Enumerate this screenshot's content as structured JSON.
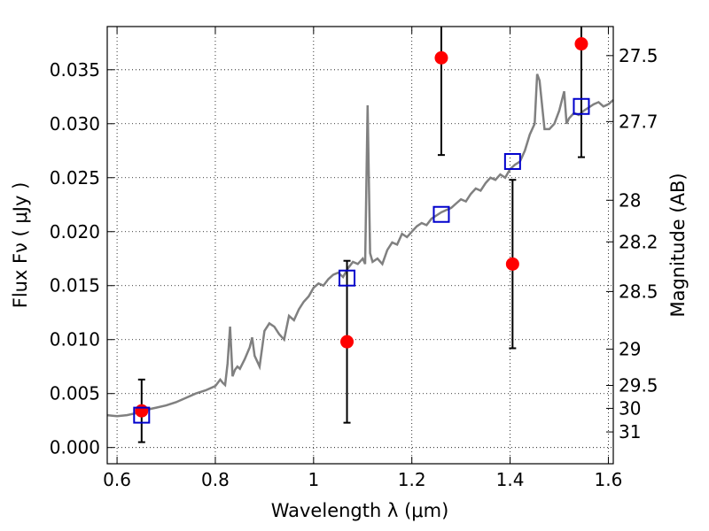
{
  "chart_data": {
    "type": "scatter",
    "xlabel": "Wavelength  λ (μm)",
    "ylabel": "Flux  Fν  ( μJy )",
    "y2label": "Magnitude (AB)",
    "xlim": [
      0.58,
      1.61
    ],
    "ylim": [
      -0.0015,
      0.039
    ],
    "grid": true,
    "x_ticks": [
      0.6,
      0.8,
      1.0,
      1.2,
      1.4,
      1.6
    ],
    "x_tick_labels": [
      "0.6",
      "0.8",
      "1",
      "1.2",
      "1.4",
      "1.6"
    ],
    "y_ticks": [
      0.0,
      0.005,
      0.01,
      0.015,
      0.02,
      0.025,
      0.03,
      0.035
    ],
    "y_tick_labels": [
      "0.000",
      "0.005",
      "0.010",
      "0.015",
      "0.020",
      "0.025",
      "0.030",
      "0.035"
    ],
    "mag_ticks": [
      27.5,
      27.7,
      28,
      28.2,
      28.5,
      29,
      29.5,
      30,
      31
    ],
    "mag_tick_labels": [
      "27.5",
      "27.7",
      "28",
      "28.2",
      "28.5",
      "29",
      "29.5",
      "30",
      "31"
    ],
    "colors": {
      "spectrum": "#808080",
      "observed": "#ff0000",
      "model": "#0000cc",
      "errorbar": "#000000"
    },
    "spectrum": {
      "x": [
        0.58,
        0.6,
        0.62,
        0.64,
        0.66,
        0.68,
        0.7,
        0.72,
        0.74,
        0.76,
        0.78,
        0.8,
        0.81,
        0.815,
        0.82,
        0.825,
        0.83,
        0.835,
        0.84,
        0.845,
        0.85,
        0.86,
        0.87,
        0.875,
        0.88,
        0.89,
        0.9,
        0.91,
        0.92,
        0.93,
        0.94,
        0.95,
        0.96,
        0.97,
        0.98,
        0.99,
        1.0,
        1.01,
        1.02,
        1.03,
        1.04,
        1.05,
        1.06,
        1.07,
        1.08,
        1.09,
        1.1,
        1.105,
        1.11,
        1.115,
        1.12,
        1.13,
        1.14,
        1.15,
        1.16,
        1.17,
        1.18,
        1.19,
        1.2,
        1.21,
        1.22,
        1.23,
        1.24,
        1.25,
        1.26,
        1.27,
        1.28,
        1.29,
        1.3,
        1.31,
        1.32,
        1.33,
        1.34,
        1.35,
        1.36,
        1.37,
        1.38,
        1.39,
        1.4,
        1.41,
        1.42,
        1.43,
        1.44,
        1.45,
        1.455,
        1.46,
        1.47,
        1.48,
        1.49,
        1.5,
        1.51,
        1.515,
        1.52,
        1.53,
        1.54,
        1.55,
        1.56,
        1.57,
        1.58,
        1.59,
        1.6,
        1.61
      ],
      "y": [
        0.003,
        0.0029,
        0.003,
        0.0032,
        0.0035,
        0.0037,
        0.0039,
        0.0042,
        0.0046,
        0.005,
        0.0053,
        0.0057,
        0.0063,
        0.006,
        0.0058,
        0.0078,
        0.0112,
        0.0066,
        0.0072,
        0.0075,
        0.0073,
        0.0082,
        0.0093,
        0.0102,
        0.0085,
        0.0075,
        0.0108,
        0.0115,
        0.0112,
        0.0105,
        0.01,
        0.0122,
        0.0118,
        0.0128,
        0.0135,
        0.014,
        0.0148,
        0.0152,
        0.015,
        0.0156,
        0.016,
        0.0162,
        0.0158,
        0.0166,
        0.0172,
        0.017,
        0.0175,
        0.017,
        0.0317,
        0.018,
        0.0172,
        0.0175,
        0.017,
        0.0183,
        0.019,
        0.0188,
        0.0198,
        0.0195,
        0.02,
        0.0205,
        0.0208,
        0.0206,
        0.0212,
        0.0215,
        0.0218,
        0.022,
        0.0222,
        0.0226,
        0.023,
        0.0228,
        0.0235,
        0.024,
        0.0238,
        0.0245,
        0.025,
        0.0248,
        0.0253,
        0.025,
        0.0258,
        0.0262,
        0.0265,
        0.0275,
        0.029,
        0.03,
        0.0346,
        0.034,
        0.0295,
        0.0295,
        0.03,
        0.0312,
        0.033,
        0.03,
        0.0305,
        0.031,
        0.0308,
        0.0312,
        0.0315,
        0.0318,
        0.032,
        0.0316,
        0.0318,
        0.0322
      ]
    },
    "series": [
      {
        "kind": "observed",
        "x": [
          0.65,
          1.068,
          1.26,
          1.405,
          1.545
        ],
        "y": [
          0.0034,
          0.0098,
          0.0361,
          0.017,
          0.0374
        ],
        "yerr": [
          0.0029,
          0.0075,
          0.009,
          0.0078,
          0.0105
        ]
      },
      {
        "kind": "model",
        "x": [
          0.65,
          1.068,
          1.26,
          1.405,
          1.545
        ],
        "y": [
          0.003,
          0.0157,
          0.0216,
          0.0265,
          0.0316
        ]
      }
    ]
  }
}
